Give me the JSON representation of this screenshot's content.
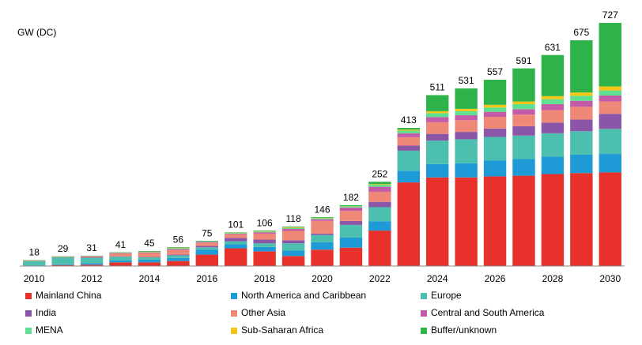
{
  "chart_data": {
    "type": "stacked_bar",
    "y_axis_label": "GW (DC)",
    "categories": [
      "2010",
      null,
      "2012",
      null,
      "2014",
      null,
      "2016",
      null,
      "2018",
      null,
      "2020",
      null,
      "2022",
      null,
      "2024",
      null,
      "2026",
      null,
      "2028",
      null,
      "2030"
    ],
    "totals": [
      18,
      29,
      31,
      41,
      45,
      56,
      75,
      101,
      106,
      118,
      146,
      182,
      252,
      413,
      511,
      531,
      557,
      591,
      631,
      675,
      727
    ],
    "series": [
      {
        "name": "Mainland China",
        "color": "#e8312a",
        "values": [
          1,
          3,
          4,
          11,
          11,
          15,
          34,
          53,
          44,
          30,
          49,
          55,
          106,
          250,
          265,
          265,
          268,
          270,
          275,
          278,
          280
        ]
      },
      {
        "name": "North America and Caribbean",
        "color": "#1e9ad6",
        "values": [
          1,
          2,
          4,
          6,
          8,
          9,
          15,
          12,
          13,
          16,
          22,
          30,
          28,
          35,
          40,
          42,
          48,
          50,
          52,
          55,
          55
        ]
      },
      {
        "name": "Europe",
        "color": "#4dbfae",
        "values": [
          13,
          21,
          17,
          11,
          7,
          8,
          7,
          9,
          11,
          22,
          22,
          38,
          42,
          60,
          70,
          72,
          70,
          70,
          70,
          70,
          75
        ]
      },
      {
        "name": "India",
        "color": "#8b55a8",
        "values": [
          0,
          0,
          1,
          1,
          1,
          2,
          4,
          10,
          11,
          9,
          4,
          12,
          16,
          15,
          20,
          22,
          25,
          28,
          32,
          35,
          45
        ]
      },
      {
        "name": "Other Asia",
        "color": "#f08878",
        "values": [
          2,
          2,
          3,
          9,
          12,
          14,
          10,
          11,
          18,
          28,
          38,
          30,
          30,
          25,
          35,
          35,
          35,
          35,
          37,
          38,
          37
        ]
      },
      {
        "name": "Central and South America",
        "color": "#c45ba8",
        "values": [
          0,
          0,
          1,
          1,
          2,
          3,
          2,
          2,
          4,
          6,
          5,
          10,
          15,
          12,
          15,
          15,
          15,
          16,
          18,
          18,
          18
        ]
      },
      {
        "name": "MENA",
        "color": "#5ee090",
        "values": [
          0,
          0,
          0,
          1,
          1,
          2,
          1,
          2,
          2,
          3,
          3,
          3,
          6,
          8,
          12,
          12,
          13,
          15,
          15,
          15,
          15
        ]
      },
      {
        "name": "Sub-Saharan Africa",
        "color": "#f5c518",
        "values": [
          0,
          0,
          0,
          0,
          1,
          1,
          0,
          1,
          1,
          2,
          1,
          1,
          2,
          3,
          6,
          7,
          8,
          8,
          9,
          10,
          12
        ]
      },
      {
        "name": "Buffer/unknown",
        "color": "#2eb34a",
        "values": [
          1,
          1,
          1,
          1,
          2,
          2,
          2,
          1,
          2,
          2,
          2,
          3,
          7,
          5,
          48,
          61,
          75,
          99,
          123,
          156,
          190
        ]
      }
    ]
  }
}
